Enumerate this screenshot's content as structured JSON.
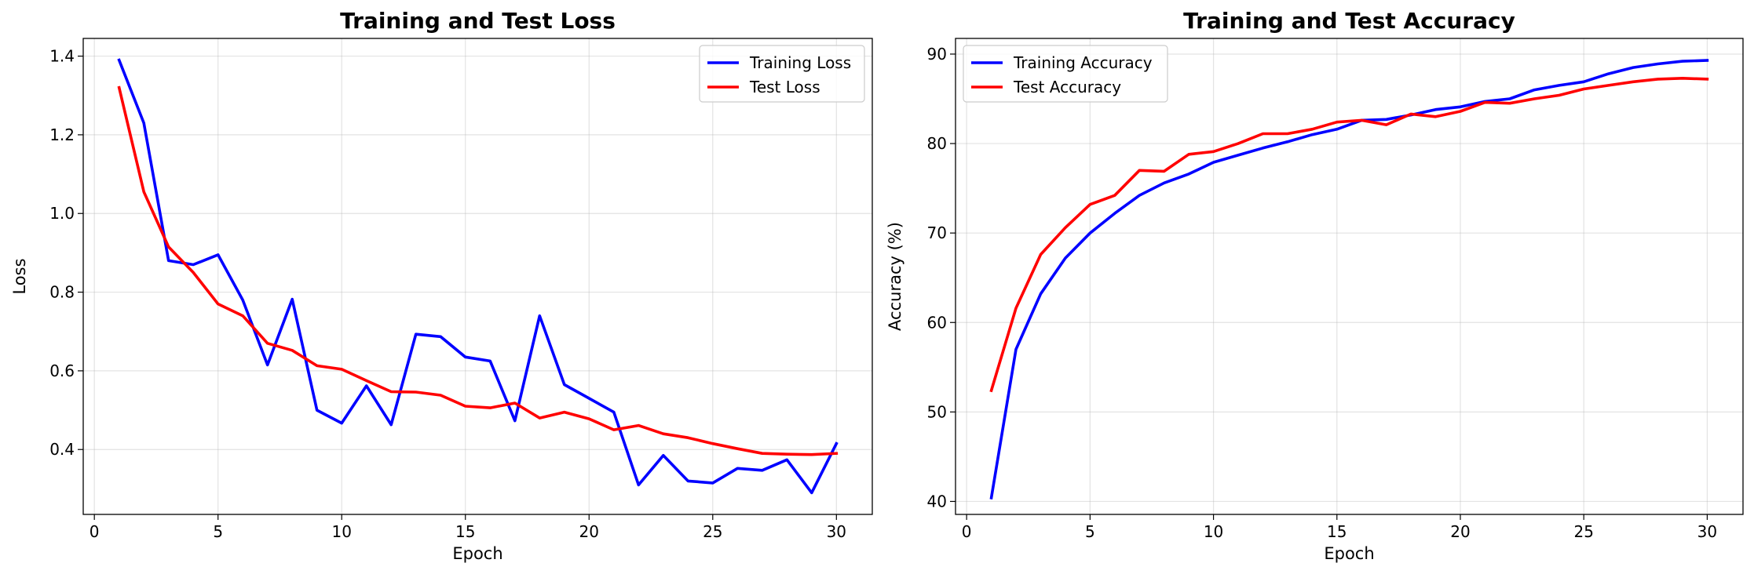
{
  "chart_data": [
    {
      "type": "line",
      "title": "Training and Test Loss",
      "xlabel": "Epoch",
      "ylabel": "Loss",
      "xlim": [
        -0.45,
        31.45
      ],
      "ylim": [
        0.235,
        1.445
      ],
      "xticks": [
        0,
        5,
        10,
        15,
        20,
        25,
        30
      ],
      "yticks": [
        0.4,
        0.6,
        0.8,
        1.0,
        1.2,
        1.4
      ],
      "xtick_labels": [
        "0",
        "5",
        "10",
        "15",
        "20",
        "25",
        "30"
      ],
      "ytick_labels": [
        "0.4",
        "0.6",
        "0.8",
        "1.0",
        "1.2",
        "1.4"
      ],
      "grid": true,
      "legend_position": "upper right",
      "x": [
        1,
        2,
        3,
        4,
        5,
        6,
        7,
        8,
        9,
        10,
        11,
        12,
        13,
        14,
        15,
        16,
        17,
        18,
        19,
        20,
        21,
        22,
        23,
        24,
        25,
        26,
        27,
        28,
        29,
        30
      ],
      "series": [
        {
          "name": "Training Loss",
          "color": "#0000ff",
          "values": [
            1.39,
            1.23,
            0.88,
            0.87,
            0.895,
            0.78,
            0.615,
            0.782,
            0.5,
            0.467,
            0.562,
            0.463,
            0.693,
            0.687,
            0.635,
            0.625,
            0.473,
            0.74,
            0.565,
            0.53,
            0.495,
            0.31,
            0.385,
            0.32,
            0.315,
            0.352,
            0.347,
            0.374,
            0.29,
            0.415
          ]
        },
        {
          "name": "Test Loss",
          "color": "#ff0000",
          "values": [
            1.32,
            1.055,
            0.915,
            0.85,
            0.77,
            0.74,
            0.67,
            0.652,
            0.613,
            0.604,
            0.575,
            0.547,
            0.546,
            0.538,
            0.51,
            0.506,
            0.518,
            0.48,
            0.495,
            0.478,
            0.45,
            0.461,
            0.44,
            0.43,
            0.415,
            0.402,
            0.39,
            0.388,
            0.387,
            0.39
          ]
        }
      ]
    },
    {
      "type": "line",
      "title": "Training and Test Accuracy",
      "xlabel": "Epoch",
      "ylabel": "Accuracy (%)",
      "xlim": [
        -0.45,
        31.45
      ],
      "ylim": [
        38.55,
        91.75
      ],
      "xticks": [
        0,
        5,
        10,
        15,
        20,
        25,
        30
      ],
      "yticks": [
        40,
        50,
        60,
        70,
        80,
        90
      ],
      "xtick_labels": [
        "0",
        "5",
        "10",
        "15",
        "20",
        "25",
        "30"
      ],
      "ytick_labels": [
        "40",
        "50",
        "60",
        "70",
        "80",
        "90"
      ],
      "grid": true,
      "legend_position": "upper left",
      "x": [
        1,
        2,
        3,
        4,
        5,
        6,
        7,
        8,
        9,
        10,
        11,
        12,
        13,
        14,
        15,
        16,
        17,
        18,
        19,
        20,
        21,
        22,
        23,
        24,
        25,
        26,
        27,
        28,
        29,
        30
      ],
      "series": [
        {
          "name": "Training Accuracy",
          "color": "#0000ff",
          "values": [
            40.4,
            57.0,
            63.2,
            67.2,
            70.0,
            72.2,
            74.2,
            75.6,
            76.6,
            77.9,
            78.7,
            79.5,
            80.2,
            81.0,
            81.6,
            82.6,
            82.7,
            83.2,
            83.8,
            84.1,
            84.7,
            85.0,
            86.0,
            86.5,
            86.9,
            87.8,
            88.5,
            88.9,
            89.2,
            89.3
          ]
        },
        {
          "name": "Test Accuracy",
          "color": "#ff0000",
          "values": [
            52.4,
            61.6,
            67.6,
            70.6,
            73.2,
            74.2,
            77.0,
            76.9,
            78.8,
            79.1,
            80.0,
            81.1,
            81.1,
            81.6,
            82.4,
            82.6,
            82.1,
            83.3,
            83.0,
            83.6,
            84.6,
            84.5,
            85.0,
            85.4,
            86.1,
            86.5,
            86.9,
            87.2,
            87.3,
            87.2
          ]
        }
      ]
    }
  ]
}
